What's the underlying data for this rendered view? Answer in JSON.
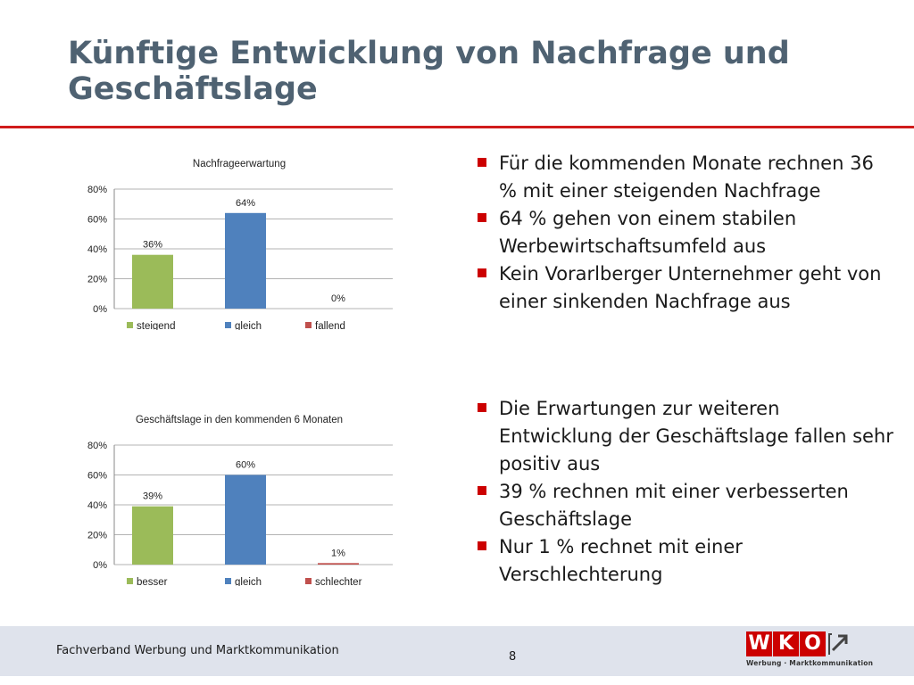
{
  "slide": {
    "title_line1": "Künftige Entwicklung von Nachfrage und",
    "title_line2": "Geschäftslage",
    "bullets_top": [
      "Für die kommenden Monate rechnen 36 % mit einer steigenden Nachfrage",
      "64 % gehen von einem stabilen Werbewirtschaftsumfeld aus",
      "Kein Vorarlberger Unternehmer geht von einer sinkenden Nachfrage aus"
    ],
    "bullets_bottom": [
      "Die Erwartungen zur weiteren Entwicklung der Geschäftslage fallen sehr positiv aus",
      "39 % rechnen mit einer verbesserten Geschäftslage",
      "Nur 1 % rechnet mit einer Verschlechterung"
    ]
  },
  "footer": {
    "org": "Fachverband Werbung und Marktkommunikation",
    "page": "8",
    "logo_letters": [
      "W",
      "K",
      "O"
    ],
    "logo_sub": "Werbung · Marktkommunikation"
  },
  "colors": {
    "title": "#4f6272",
    "accent_red": "#d01c1c",
    "green": "#9bbb59",
    "blue": "#4f81bd",
    "red": "#c0504d"
  },
  "chart_data": [
    {
      "type": "bar",
      "title": "Nachfrageerwartung",
      "categories": [
        "steigend",
        "gleich",
        "fallend"
      ],
      "values": [
        36,
        64,
        0
      ],
      "data_labels": [
        "36%",
        "64%",
        "0%"
      ],
      "colors": [
        "#9bbb59",
        "#4f81bd",
        "#c0504d"
      ],
      "yticks": [
        "0%",
        "20%",
        "40%",
        "60%",
        "80%"
      ],
      "ylim": [
        0,
        80
      ],
      "grid": true,
      "legend": "bottom"
    },
    {
      "type": "bar",
      "title": "Geschäftslage in den kommenden 6 Monaten",
      "categories": [
        "besser",
        "gleich",
        "schlechter"
      ],
      "values": [
        39,
        60,
        1
      ],
      "data_labels": [
        "39%",
        "60%",
        "1%"
      ],
      "colors": [
        "#9bbb59",
        "#4f81bd",
        "#c0504d"
      ],
      "yticks": [
        "0%",
        "20%",
        "40%",
        "60%",
        "80%"
      ],
      "ylim": [
        0,
        80
      ],
      "grid": true,
      "legend": "bottom"
    }
  ]
}
